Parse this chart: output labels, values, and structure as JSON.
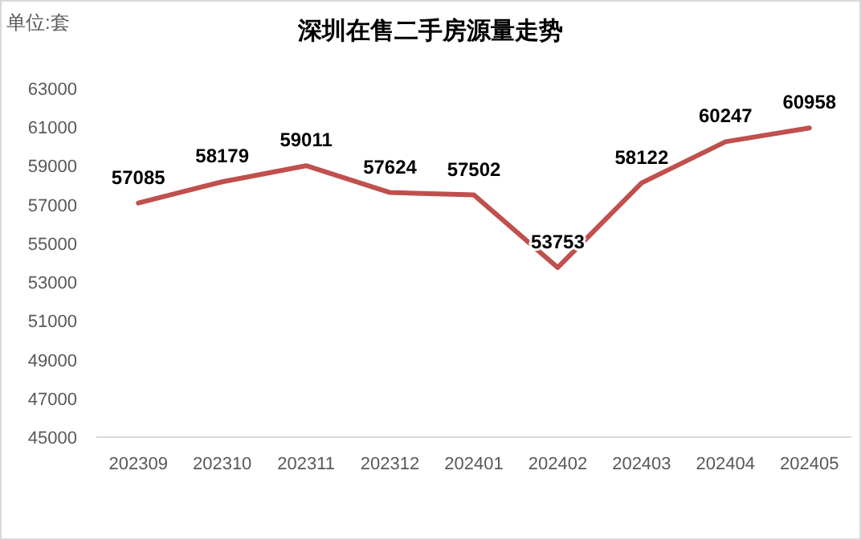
{
  "chart_data": {
    "type": "line",
    "title": "深圳在售二手房源量走势",
    "annotations": [
      "单位:套"
    ],
    "categories": [
      "202309",
      "202310",
      "202311",
      "202312",
      "202401",
      "202402",
      "202403",
      "202404",
      "202405"
    ],
    "series": [
      {
        "color": "#bf504d",
        "values": [
          57085,
          58179,
          59011,
          57624,
          57502,
          53753,
          58122,
          60247,
          60958
        ]
      }
    ],
    "ylim": [
      45000,
      63000
    ],
    "yticks": [
      45000,
      47000,
      49000,
      51000,
      53000,
      55000,
      57000,
      59000,
      61000,
      63000
    ],
    "data_labels": true,
    "grid": false,
    "marker": "none",
    "line_style": "solid"
  }
}
